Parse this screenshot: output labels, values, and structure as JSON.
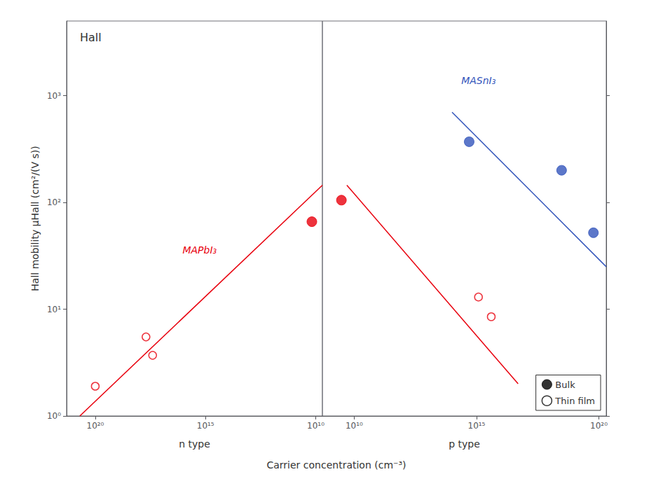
{
  "chart_data": [
    {
      "type": "scatter",
      "title": "Hall",
      "xlabel": "Carrier concentration (cm⁻³)",
      "ylabel": "Hall mobility μHall (cm²/(V s))",
      "log": true,
      "grid": false,
      "xlim": [
        2e+21,
        5000000000.0
      ],
      "xticks": [
        {
          "value": 1e+20,
          "label": "10²⁰"
        },
        {
          "value": 1000000000000000.0,
          "label": "10¹⁵"
        },
        {
          "value": 10000000000.0,
          "label": "10¹⁰"
        }
      ],
      "ylim": [
        1,
        5000
      ],
      "yticks": [
        {
          "value": 1,
          "label": "10⁰"
        },
        {
          "value": 10,
          "label": "10¹"
        },
        {
          "value": 100,
          "label": "10²"
        },
        {
          "value": 1000,
          "label": "10³"
        }
      ],
      "annotations": [
        {
          "text": "MAPbI₃",
          "color": "#e8000d"
        },
        {
          "text": "n type"
        }
      ],
      "series": [
        {
          "type": "line",
          "color": "#e8000d",
          "x": [
            5e+20,
            5000000000.0
          ],
          "values": [
            1.0,
            145
          ]
        },
        {
          "name": "Thin film",
          "type": "scatter",
          "marker": "open circle",
          "color": "#e8000d",
          "x": [
            1e+20,
            2.5e+17,
            5e+17
          ],
          "values": [
            1.9,
            3.7,
            5.5
          ]
        },
        {
          "name": "Bulk",
          "type": "scatter",
          "marker": "circle",
          "color": "#e8000d",
          "x": [
            15000000000.0
          ],
          "values": [
            66
          ]
        }
      ]
    },
    {
      "type": "scatter",
      "log": true,
      "grid": false,
      "tick_labels": "x",
      "legend": "lower right",
      "xlim": [
        500000000.0,
        2e+20
      ],
      "xticks": [
        {
          "value": 10000000000.0,
          "label": "10¹⁰"
        },
        {
          "value": 1000000000000000.0,
          "label": "10¹⁵"
        },
        {
          "value": 1e+20,
          "label": "10²⁰"
        }
      ],
      "ylim": [
        1,
        5000
      ],
      "yticks": [
        1,
        10,
        100,
        1000
      ],
      "annotations": [
        {
          "text": "MASnI₃",
          "color": "#3355bb"
        },
        {
          "text": "p type"
        }
      ],
      "series": [
        {
          "type": "line",
          "color": "#e8000d",
          "x": [
            5000000000.0,
            5e+16
          ],
          "values": [
            145,
            2.0
          ]
        },
        {
          "type": "line",
          "color": "#3355bb",
          "x": [
            100000000000000.0,
            2e+20
          ],
          "values": [
            700,
            25
          ]
        },
        {
          "name": "Thin film",
          "type": "scatter",
          "marker": "open circle",
          "color": "#e8000d",
          "x": [
            1200000000000000.0,
            4000000000000000.0
          ],
          "values": [
            13,
            8.5
          ]
        },
        {
          "name": "Bulk",
          "type": "scatter",
          "marker": "circle",
          "color": "#e8000d",
          "x": [
            3000000000.0
          ],
          "values": [
            105
          ]
        },
        {
          "name": "Bulk",
          "type": "scatter",
          "marker": "circle",
          "color": "#3355bb",
          "x": [
            500000000000000.0,
            3e+18,
            6e+19
          ],
          "values": [
            370,
            200,
            52
          ]
        }
      ]
    }
  ]
}
